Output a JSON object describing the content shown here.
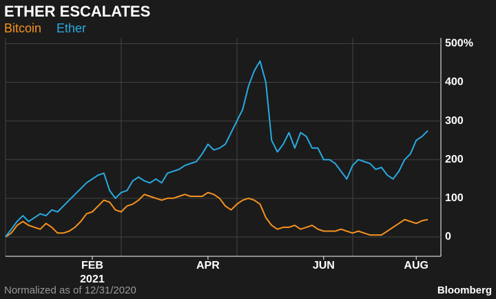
{
  "chart_data": {
    "type": "line",
    "title": "ETHER ESCALATES",
    "footnote": "Normalized as of 12/31/2020",
    "source": "Bloomberg",
    "categories": [
      null,
      null,
      null,
      null,
      null,
      null,
      null,
      null,
      null,
      null,
      null,
      null,
      null,
      null,
      null,
      "FEB",
      null,
      null,
      null,
      null,
      null,
      null,
      null,
      null,
      null,
      null,
      null,
      null,
      null,
      null,
      null,
      null,
      null,
      null,
      null,
      "APR",
      null,
      null,
      null,
      null,
      null,
      null,
      null,
      null,
      null,
      null,
      null,
      null,
      null,
      null,
      null,
      null,
      null,
      null,
      null,
      "JUN",
      null,
      null,
      null,
      null,
      null,
      null,
      null,
      null,
      null,
      null,
      null,
      null,
      null,
      null,
      null,
      "AUG",
      null,
      null
    ],
    "year_label": "2021",
    "series": [
      {
        "name": "Bitcoin",
        "color": "#f7931e",
        "values": [
          0,
          10,
          30,
          40,
          30,
          25,
          20,
          35,
          25,
          10,
          10,
          15,
          25,
          40,
          60,
          65,
          80,
          95,
          90,
          70,
          65,
          80,
          85,
          95,
          110,
          105,
          100,
          95,
          100,
          100,
          105,
          110,
          105,
          105,
          105,
          115,
          110,
          100,
          80,
          70,
          85,
          95,
          100,
          95,
          85,
          50,
          30,
          20,
          25,
          25,
          30,
          20,
          25,
          30,
          20,
          15,
          15,
          15,
          20,
          15,
          10,
          15,
          10,
          5,
          5,
          5,
          15,
          25,
          35,
          45,
          40,
          35,
          42,
          45
        ]
      },
      {
        "name": "Ether",
        "color": "#29abe2",
        "values": [
          0,
          20,
          40,
          55,
          40,
          50,
          60,
          55,
          70,
          65,
          80,
          95,
          110,
          125,
          140,
          150,
          160,
          165,
          120,
          100,
          115,
          120,
          145,
          155,
          145,
          140,
          150,
          140,
          165,
          170,
          175,
          185,
          190,
          195,
          215,
          240,
          225,
          230,
          240,
          270,
          300,
          330,
          390,
          430,
          455,
          400,
          250,
          220,
          240,
          270,
          230,
          270,
          260,
          230,
          230,
          200,
          200,
          190,
          170,
          150,
          185,
          200,
          195,
          190,
          175,
          180,
          160,
          150,
          170,
          200,
          215,
          250,
          260,
          275
        ]
      }
    ],
    "ylim": [
      -50,
      515
    ],
    "yticks": [
      0,
      100,
      200,
      300,
      400,
      {
        "value": 500,
        "label": "500%"
      }
    ],
    "grid": true
  }
}
